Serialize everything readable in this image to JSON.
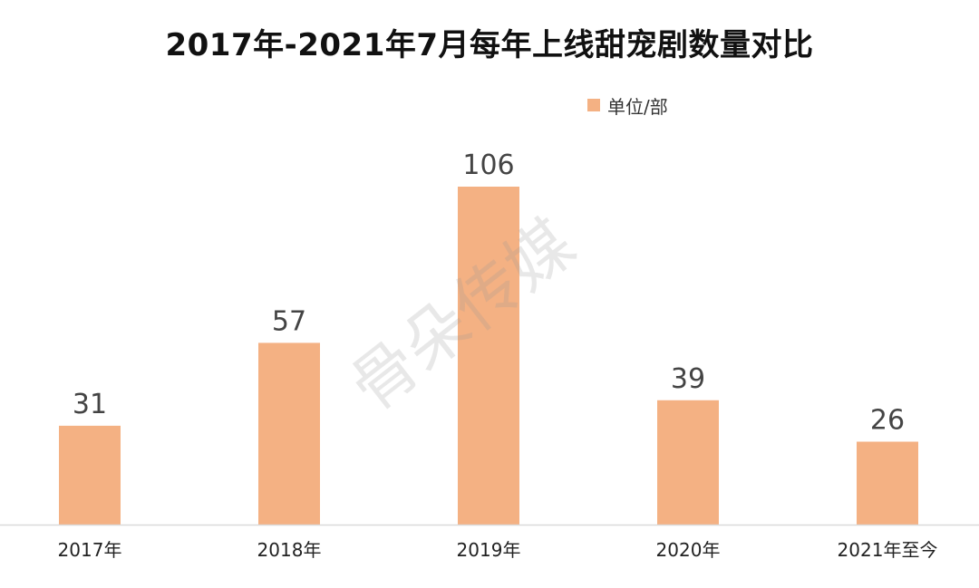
{
  "chart_data": {
    "type": "bar",
    "title": "2017年-2021年7月每年上线甜宠剧数量对比",
    "categories": [
      "2017年",
      "2018年",
      "2019年",
      "2020年",
      "2021年至今"
    ],
    "series": [
      {
        "name": "单位/部",
        "values": [
          31,
          57,
          106,
          39,
          26
        ]
      }
    ],
    "ylim": [
      0,
      106
    ],
    "grid": false,
    "legend_position": "top-right",
    "bar_color": "#F4B183",
    "axis_color": "#D9D9D9"
  },
  "watermark": "骨朵传媒"
}
